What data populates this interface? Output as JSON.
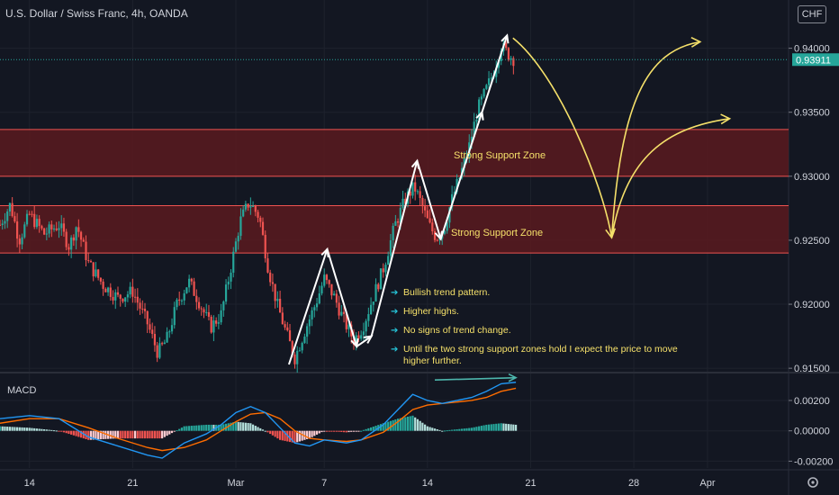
{
  "header": {
    "title": "U.S. Dollar / Swiss Franc, 4h, OANDA",
    "currency": "CHF"
  },
  "macd": {
    "label": "MACD"
  },
  "annotations": {
    "zone_top_label": "Strong Support Zone",
    "zone_bottom_label": "Strong Support Zone",
    "bullets": [
      "Bullish trend pattern.",
      "Higher highs.",
      "No signs of trend change.",
      "Until the two strong support zones hold I expect the price to move higher further."
    ]
  },
  "chart_data": [
    {
      "type": "candlestick",
      "xlabel": "",
      "ylabel": "",
      "x_ticks": [
        {
          "label": "14",
          "day": 0
        },
        {
          "label": "21",
          "day": 7
        },
        {
          "label": "Mar",
          "day": 14
        },
        {
          "label": "7",
          "day": 20
        },
        {
          "label": "14",
          "day": 27
        },
        {
          "label": "21",
          "day": 34
        },
        {
          "label": "28",
          "day": 41
        },
        {
          "label": "Apr",
          "day": 46
        }
      ],
      "y_ticks": [
        "0.94000",
        "0.93500",
        "0.93000",
        "0.92500",
        "0.92000",
        "0.91500"
      ],
      "ylim": [
        0.9148,
        0.9418
      ],
      "xlim_days": [
        -2,
        51.5
      ],
      "last_price": {
        "value": 0.93911,
        "label": "0.93911",
        "color": "#26a69a"
      },
      "colors": {
        "up": "#26a69a",
        "down": "#ef5350",
        "zone_fill": "#5b1a1f",
        "zone_border": "#ef5350",
        "annotation": "#f5e06a",
        "pattern": "#ffffff"
      },
      "support_zones": [
        {
          "low": 0.93,
          "high": 0.93365
        },
        {
          "low": 0.924,
          "high": 0.9277
        }
      ],
      "close_path": [
        {
          "day": -2.0,
          "v": 0.9262
        },
        {
          "day": -1.3,
          "v": 0.9278
        },
        {
          "day": -0.7,
          "v": 0.925
        },
        {
          "day": 0.0,
          "v": 0.927
        },
        {
          "day": 1.0,
          "v": 0.9255
        },
        {
          "day": 2.0,
          "v": 0.9262
        },
        {
          "day": 2.7,
          "v": 0.9245
        },
        {
          "day": 3.2,
          "v": 0.9262
        },
        {
          "day": 4.0,
          "v": 0.9232
        },
        {
          "day": 5.0,
          "v": 0.9215
        },
        {
          "day": 6.0,
          "v": 0.9205
        },
        {
          "day": 7.0,
          "v": 0.921
        },
        {
          "day": 8.0,
          "v": 0.9185
        },
        {
          "day": 8.7,
          "v": 0.9162
        },
        {
          "day": 9.3,
          "v": 0.9172
        },
        {
          "day": 10.0,
          "v": 0.92
        },
        {
          "day": 10.8,
          "v": 0.9218
        },
        {
          "day": 11.5,
          "v": 0.9202
        },
        {
          "day": 12.3,
          "v": 0.9182
        },
        {
          "day": 13.0,
          "v": 0.9192
        },
        {
          "day": 13.6,
          "v": 0.9225
        },
        {
          "day": 14.3,
          "v": 0.9265
        },
        {
          "day": 14.9,
          "v": 0.928
        },
        {
          "day": 15.6,
          "v": 0.9268
        },
        {
          "day": 16.2,
          "v": 0.9228
        },
        {
          "day": 16.8,
          "v": 0.92
        },
        {
          "day": 17.4,
          "v": 0.9178
        },
        {
          "day": 18.0,
          "v": 0.9158
        },
        {
          "day": 18.7,
          "v": 0.918
        },
        {
          "day": 19.4,
          "v": 0.92
        },
        {
          "day": 20.0,
          "v": 0.922
        },
        {
          "day": 20.7,
          "v": 0.9205
        },
        {
          "day": 21.3,
          "v": 0.9188
        },
        {
          "day": 22.0,
          "v": 0.9172
        },
        {
          "day": 22.6,
          "v": 0.9182
        },
        {
          "day": 23.3,
          "v": 0.9205
        },
        {
          "day": 24.0,
          "v": 0.9228
        },
        {
          "day": 24.8,
          "v": 0.9262
        },
        {
          "day": 25.5,
          "v": 0.9282
        },
        {
          "day": 26.1,
          "v": 0.9292
        },
        {
          "day": 26.6,
          "v": 0.9278
        },
        {
          "day": 27.1,
          "v": 0.9262
        },
        {
          "day": 27.6,
          "v": 0.9252
        },
        {
          "day": 28.1,
          "v": 0.9258
        },
        {
          "day": 28.6,
          "v": 0.928
        },
        {
          "day": 29.2,
          "v": 0.93
        },
        {
          "day": 29.8,
          "v": 0.9322
        },
        {
          "day": 30.4,
          "v": 0.9352
        },
        {
          "day": 31.0,
          "v": 0.9368
        },
        {
          "day": 31.5,
          "v": 0.9382
        },
        {
          "day": 32.0,
          "v": 0.9402
        },
        {
          "day": 32.5,
          "v": 0.9395
        },
        {
          "day": 32.9,
          "v": 0.9391
        }
      ],
      "pattern_lines": [
        [
          {
            "day": 17.6,
            "v": 0.9153
          },
          {
            "day": 20.2,
            "v": 0.9243
          },
          {
            "day": 22.2,
            "v": 0.9167
          },
          {
            "day": 23.2,
            "v": 0.9175
          },
          {
            "day": 26.3,
            "v": 0.9312
          },
          {
            "day": 27.9,
            "v": 0.9251
          },
          {
            "day": 30.7,
            "v": 0.935
          },
          {
            "day": 32.4,
            "v": 0.941
          }
        ]
      ],
      "projection_paths": [
        [
          {
            "day": 32.8,
            "v": 0.9408
          },
          {
            "day": 39.5,
            "v": 0.9252
          },
          {
            "day": 45.5,
            "v": 0.9405
          }
        ],
        [
          {
            "day": 39.5,
            "v": 0.9252
          },
          {
            "day": 47.5,
            "v": 0.9345
          }
        ]
      ]
    },
    {
      "type": "macd",
      "y_ticks": [
        "0.00200",
        "0.00000",
        "-0.00200"
      ],
      "ylim": [
        -0.00245,
        0.0036
      ],
      "colors": {
        "macd_line": "#2196f3",
        "signal_line": "#ff6d00",
        "hist_up": "#26a69a",
        "hist_up_light": "#b2dfdb",
        "hist_down": "#ef5350",
        "hist_down_light": "#ffcdd2",
        "trend_line": "#4db6ac"
      },
      "trend_line": [
        {
          "day": 27.5,
          "v": 0.00335
        },
        {
          "day": 33.0,
          "v": 0.0035
        }
      ],
      "macd": [
        {
          "day": -2.0,
          "v": 0.0008
        },
        {
          "day": 0.0,
          "v": 0.001
        },
        {
          "day": 2.0,
          "v": 0.0008
        },
        {
          "day": 4.0,
          "v": -0.0004
        },
        {
          "day": 6.0,
          "v": -0.001
        },
        {
          "day": 8.0,
          "v": -0.0016
        },
        {
          "day": 9.0,
          "v": -0.0018
        },
        {
          "day": 10.5,
          "v": -0.0008
        },
        {
          "day": 12.0,
          "v": -0.0002
        },
        {
          "day": 13.0,
          "v": 0.0004
        },
        {
          "day": 14.0,
          "v": 0.0012
        },
        {
          "day": 15.0,
          "v": 0.0016
        },
        {
          "day": 16.0,
          "v": 0.0012
        },
        {
          "day": 17.0,
          "v": 0.0002
        },
        {
          "day": 18.0,
          "v": -0.0008
        },
        {
          "day": 19.0,
          "v": -0.001
        },
        {
          "day": 20.0,
          "v": -0.0006
        },
        {
          "day": 21.5,
          "v": -0.0008
        },
        {
          "day": 22.5,
          "v": -0.0006
        },
        {
          "day": 24.0,
          "v": 0.0004
        },
        {
          "day": 25.0,
          "v": 0.0014
        },
        {
          "day": 26.0,
          "v": 0.0024
        },
        {
          "day": 27.0,
          "v": 0.002
        },
        {
          "day": 28.0,
          "v": 0.0018
        },
        {
          "day": 29.0,
          "v": 0.002
        },
        {
          "day": 30.0,
          "v": 0.0022
        },
        {
          "day": 31.0,
          "v": 0.0026
        },
        {
          "day": 32.0,
          "v": 0.0031
        },
        {
          "day": 33.0,
          "v": 0.0032
        }
      ],
      "signal": [
        {
          "day": -2.0,
          "v": 0.0005
        },
        {
          "day": 0.0,
          "v": 0.0008
        },
        {
          "day": 2.0,
          "v": 0.0008
        },
        {
          "day": 4.0,
          "v": 0.0002
        },
        {
          "day": 6.0,
          "v": -0.0005
        },
        {
          "day": 8.0,
          "v": -0.0011
        },
        {
          "day": 9.0,
          "v": -0.0013
        },
        {
          "day": 10.5,
          "v": -0.0011
        },
        {
          "day": 12.0,
          "v": -0.0006
        },
        {
          "day": 13.0,
          "v": 0.0
        },
        {
          "day": 14.0,
          "v": 0.0006
        },
        {
          "day": 15.0,
          "v": 0.0011
        },
        {
          "day": 16.0,
          "v": 0.0012
        },
        {
          "day": 17.0,
          "v": 0.0008
        },
        {
          "day": 18.0,
          "v": 0.0
        },
        {
          "day": 19.0,
          "v": -0.0005
        },
        {
          "day": 20.0,
          "v": -0.0006
        },
        {
          "day": 21.5,
          "v": -0.0007
        },
        {
          "day": 22.5,
          "v": -0.0006
        },
        {
          "day": 24.0,
          "v": -0.0001
        },
        {
          "day": 25.0,
          "v": 0.0006
        },
        {
          "day": 26.0,
          "v": 0.0014
        },
        {
          "day": 27.0,
          "v": 0.0017
        },
        {
          "day": 28.0,
          "v": 0.0018
        },
        {
          "day": 29.0,
          "v": 0.0019
        },
        {
          "day": 30.0,
          "v": 0.002
        },
        {
          "day": 31.0,
          "v": 0.0022
        },
        {
          "day": 32.0,
          "v": 0.0026
        },
        {
          "day": 33.0,
          "v": 0.0028
        }
      ]
    }
  ]
}
